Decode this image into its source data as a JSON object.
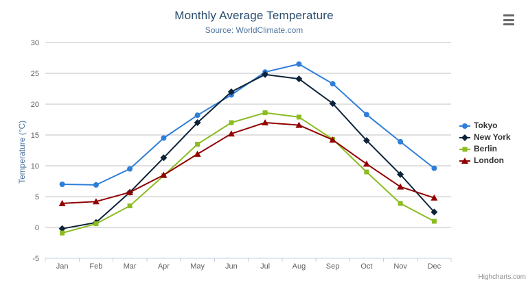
{
  "header": {
    "title": "Monthly Average Temperature",
    "subtitle": "Source: WorldClimate.com"
  },
  "credits_label": "Highcharts.com",
  "context_menu_icon": "hamburger-icon",
  "colors": {
    "title_text": "#274b6d",
    "subtitle_text": "#4d759e",
    "axis_title_text": "#4d759e",
    "tick_label_text": "#606060",
    "gridline": "#c0c0c0",
    "axis_line": "#c0d0e0",
    "legend_text": "#333333",
    "credits_text": "#909090",
    "menu_icon": "#666666"
  },
  "chart_data": {
    "type": "line",
    "title": "Monthly Average Temperature",
    "subtitle": "Source: WorldClimate.com",
    "xlabel": "",
    "ylabel": "Temperature (°C)",
    "categories": [
      "Jan",
      "Feb",
      "Mar",
      "Apr",
      "May",
      "Jun",
      "Jul",
      "Aug",
      "Sep",
      "Oct",
      "Nov",
      "Dec"
    ],
    "series": [
      {
        "name": "Tokyo",
        "color": "#2f7ed8",
        "marker": "circle",
        "values": [
          7.0,
          6.9,
          9.5,
          14.5,
          18.2,
          21.5,
          25.2,
          26.5,
          23.3,
          18.3,
          13.9,
          9.6
        ]
      },
      {
        "name": "New York",
        "color": "#0d233a",
        "marker": "diamond",
        "values": [
          -0.2,
          0.8,
          5.7,
          11.3,
          17.0,
          22.0,
          24.8,
          24.1,
          20.1,
          14.1,
          8.6,
          2.5
        ]
      },
      {
        "name": "Berlin",
        "color": "#8bbc21",
        "marker": "square",
        "values": [
          -0.9,
          0.6,
          3.5,
          8.4,
          13.5,
          17.0,
          18.6,
          17.9,
          14.3,
          9.0,
          3.9,
          1.0
        ]
      },
      {
        "name": "London",
        "color": "#910000",
        "marker": "triangle",
        "values": [
          3.9,
          4.2,
          5.7,
          8.5,
          11.9,
          15.2,
          17.0,
          16.6,
          14.2,
          10.3,
          6.6,
          4.8
        ]
      }
    ],
    "ylim": [
      -5,
      30
    ],
    "yticks": [
      -5,
      0,
      5,
      10,
      15,
      20,
      25,
      30
    ],
    "grid": true,
    "legend_position": "right"
  }
}
